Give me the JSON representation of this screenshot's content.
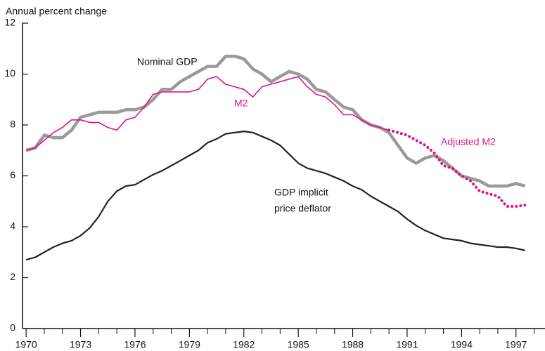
{
  "chart_data": {
    "type": "line",
    "ylabel": "Annual percent change",
    "xlim": [
      1969.8,
      1998.6
    ],
    "ylim": [
      0,
      12
    ],
    "yticks": [
      0,
      2,
      4,
      6,
      8,
      10,
      12
    ],
    "xticks": [
      1970,
      1973,
      1976,
      1979,
      1982,
      1985,
      1988,
      1991,
      1994,
      1997
    ],
    "xminor_ticks": [
      1971,
      1972,
      1974,
      1975,
      1977,
      1978,
      1980,
      1981,
      1983,
      1984,
      1986,
      1987,
      1989,
      1990,
      1992,
      1993,
      1995,
      1996,
      1998
    ],
    "annotations": [
      "Nominal GDP",
      "M2",
      "Adjusted M2",
      "GDP implicit",
      "price deflator"
    ],
    "series": [
      {
        "name": "Nominal GDP",
        "color": "#9a9a9a",
        "style": "solid",
        "x": [
          1970,
          1970.5,
          1971,
          1971.5,
          1972,
          1972.5,
          1973,
          1973.5,
          1974,
          1974.5,
          1975,
          1975.5,
          1976,
          1976.5,
          1977,
          1977.5,
          1978,
          1978.5,
          1979,
          1979.5,
          1980,
          1980.5,
          1981,
          1981.5,
          1982,
          1982.5,
          1983,
          1983.5,
          1984,
          1984.5,
          1985,
          1985.5,
          1986,
          1986.5,
          1987,
          1987.5,
          1988,
          1988.5,
          1989,
          1989.5,
          1990,
          1990.5,
          1991,
          1991.5,
          1992,
          1992.5,
          1993,
          1993.5,
          1994,
          1994.5,
          1995,
          1995.5,
          1996,
          1996.5,
          1997,
          1997.5
        ],
        "values": [
          7.0,
          7.1,
          7.6,
          7.5,
          7.5,
          7.8,
          8.3,
          8.4,
          8.5,
          8.5,
          8.5,
          8.6,
          8.6,
          8.7,
          9.0,
          9.4,
          9.4,
          9.7,
          9.9,
          10.1,
          10.3,
          10.3,
          10.7,
          10.7,
          10.6,
          10.2,
          10.0,
          9.7,
          9.9,
          10.1,
          10.0,
          9.8,
          9.4,
          9.3,
          9.0,
          8.7,
          8.6,
          8.2,
          8.0,
          7.9,
          7.7,
          7.2,
          6.7,
          6.5,
          6.7,
          6.8,
          6.6,
          6.3,
          6.0,
          5.9,
          5.8,
          5.6,
          5.6,
          5.6,
          5.7,
          5.6
        ]
      },
      {
        "name": "M2",
        "color": "#e0147f",
        "style": "thin",
        "x": [
          1970,
          1970.5,
          1971,
          1971.5,
          1972,
          1972.5,
          1973,
          1973.5,
          1974,
          1974.5,
          1975,
          1975.5,
          1976,
          1976.5,
          1977,
          1977.5,
          1978,
          1978.5,
          1979,
          1979.5,
          1980,
          1980.5,
          1981,
          1981.5,
          1982,
          1982.5,
          1983,
          1983.5,
          1984,
          1984.5,
          1985,
          1985.5,
          1986,
          1986.5,
          1987,
          1987.5,
          1988,
          1988.5,
          1989,
          1989.5,
          1990
        ],
        "values": [
          7.0,
          7.1,
          7.4,
          7.7,
          7.9,
          8.2,
          8.2,
          8.1,
          8.1,
          7.9,
          7.8,
          8.2,
          8.3,
          8.7,
          9.2,
          9.3,
          9.3,
          9.3,
          9.3,
          9.4,
          9.8,
          9.9,
          9.6,
          9.5,
          9.4,
          9.1,
          9.5,
          9.6,
          9.7,
          9.8,
          9.9,
          9.5,
          9.2,
          9.1,
          8.8,
          8.4,
          8.4,
          8.2,
          8.0,
          7.9,
          7.8
        ]
      },
      {
        "name": "Adjusted M2",
        "color": "#e0147f",
        "style": "dotted",
        "x": [
          1990,
          1990.5,
          1991,
          1991.5,
          1992,
          1992.5,
          1993,
          1993.5,
          1994,
          1994.5,
          1995,
          1995.5,
          1996,
          1996.5,
          1997,
          1997.5
        ],
        "values": [
          7.8,
          7.7,
          7.6,
          7.4,
          7.2,
          6.9,
          6.4,
          6.3,
          6.0,
          5.8,
          5.4,
          5.3,
          5.2,
          4.8,
          4.8,
          4.85
        ]
      },
      {
        "name": "GDP implicit price deflator",
        "color": "#222222",
        "style": "solid-dark",
        "x": [
          1970,
          1970.5,
          1971,
          1971.5,
          1972,
          1972.5,
          1973,
          1973.5,
          1974,
          1974.5,
          1975,
          1975.5,
          1976,
          1976.5,
          1977,
          1977.5,
          1978,
          1978.5,
          1979,
          1979.5,
          1980,
          1980.5,
          1981,
          1981.5,
          1982,
          1982.5,
          1983,
          1983.5,
          1984,
          1984.5,
          1985,
          1985.5,
          1986,
          1986.5,
          1987,
          1987.5,
          1988,
          1988.5,
          1989,
          1989.5,
          1990,
          1990.5,
          1991,
          1991.5,
          1992,
          1992.5,
          1993,
          1993.5,
          1994,
          1994.5,
          1995,
          1995.5,
          1996,
          1996.5,
          1997,
          1997.5
        ],
        "values": [
          2.7,
          2.8,
          3.0,
          3.2,
          3.35,
          3.45,
          3.65,
          3.95,
          4.4,
          5.0,
          5.4,
          5.6,
          5.65,
          5.85,
          6.05,
          6.2,
          6.4,
          6.6,
          6.8,
          7.0,
          7.3,
          7.45,
          7.65,
          7.7,
          7.75,
          7.7,
          7.55,
          7.4,
          7.2,
          6.85,
          6.5,
          6.3,
          6.2,
          6.1,
          5.95,
          5.8,
          5.6,
          5.45,
          5.2,
          5.0,
          4.8,
          4.6,
          4.3,
          4.05,
          3.85,
          3.7,
          3.55,
          3.5,
          3.45,
          3.35,
          3.3,
          3.25,
          3.2,
          3.2,
          3.15,
          3.07
        ]
      }
    ]
  }
}
